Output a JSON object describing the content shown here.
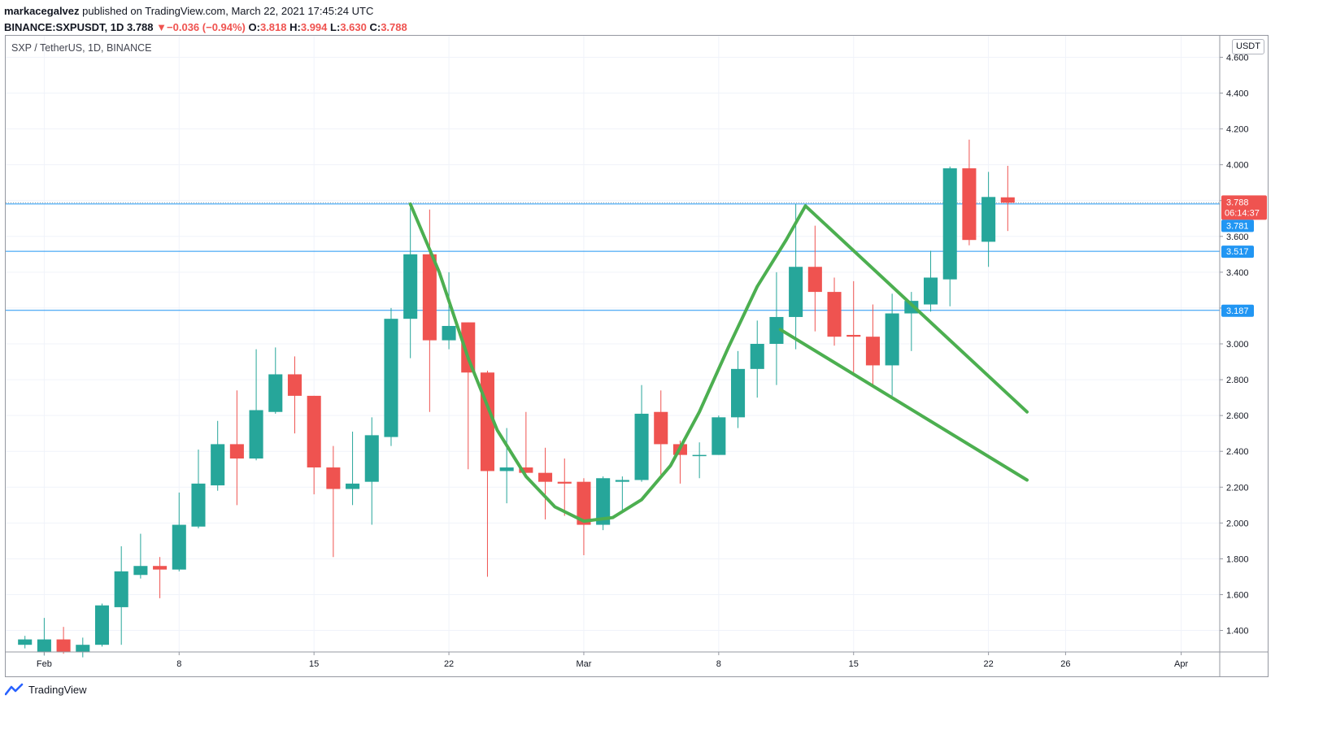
{
  "header": {
    "author": "markacegalvez",
    "published_text": "published on TradingView.com, March 22, 2021 17:45:24 UTC",
    "symbol": "BINANCE:SXPUSDT, 1D",
    "last": "3.788",
    "change_arrow": "▼",
    "change": "−0.036 (−0.94%)",
    "o_label": "O:",
    "o_value": "3.818",
    "h_label": "H:",
    "h_value": "3.994",
    "l_label": "L:",
    "l_value": "3.630",
    "c_label": "C:",
    "c_value": "3.788"
  },
  "symbol_label": "SXP / TetherUS, 1D, BINANCE",
  "currency": "USDT",
  "footer": {
    "brand": "TradingView",
    "logo_icon": "tradingview-logo-icon"
  },
  "price_badges": {
    "last_price": "3.788",
    "countdown": "06:14:37",
    "lines": [
      "3.781",
      "3.517",
      "3.187"
    ]
  },
  "colors": {
    "up": "#26a69a",
    "down": "#ef5350",
    "hline": "#2196f3",
    "drawing": "#4caf50",
    "grid": "#f0f3fa"
  },
  "chart_data": {
    "type": "candlestick",
    "y_range": [
      1.28,
      4.72
    ],
    "yticks": [
      1.4,
      1.6,
      1.8,
      2.0,
      2.2,
      2.4,
      2.6,
      2.8,
      3.0,
      3.2,
      3.4,
      3.6,
      3.8,
      4.0,
      4.2,
      4.4,
      4.6
    ],
    "ytick_labels": [
      "1.400",
      "1.600",
      "1.800",
      "2.000",
      "2.200",
      "2.400",
      "2.600",
      "2.800",
      "3.000",
      "3.200",
      "3.400",
      "3.600",
      "3.800",
      "4.000",
      "4.200",
      "4.400",
      "4.600"
    ],
    "x_range": [
      -2,
      61
    ],
    "xticks": [
      {
        "day": 0,
        "label": "Feb"
      },
      {
        "day": 7,
        "label": "8"
      },
      {
        "day": 14,
        "label": "15"
      },
      {
        "day": 21,
        "label": "22"
      },
      {
        "day": 28,
        "label": "Mar"
      },
      {
        "day": 35,
        "label": "8"
      },
      {
        "day": 42,
        "label": "15"
      },
      {
        "day": 49,
        "label": "22"
      },
      {
        "day": 53,
        "label": "26"
      },
      {
        "day": 59,
        "label": "Apr"
      }
    ],
    "candles": [
      {
        "d": -1,
        "o": 1.32,
        "h": 1.37,
        "l": 1.3,
        "c": 1.35
      },
      {
        "d": 0,
        "o": 1.28,
        "h": 1.47,
        "l": 1.26,
        "c": 1.35
      },
      {
        "d": 1,
        "o": 1.35,
        "h": 1.42,
        "l": 1.27,
        "c": 1.28
      },
      {
        "d": 2,
        "o": 1.28,
        "h": 1.36,
        "l": 1.25,
        "c": 1.32
      },
      {
        "d": 3,
        "o": 1.32,
        "h": 1.55,
        "l": 1.31,
        "c": 1.54
      },
      {
        "d": 4,
        "o": 1.53,
        "h": 1.87,
        "l": 1.32,
        "c": 1.73
      },
      {
        "d": 5,
        "o": 1.71,
        "h": 1.94,
        "l": 1.69,
        "c": 1.76
      },
      {
        "d": 6,
        "o": 1.76,
        "h": 1.81,
        "l": 1.58,
        "c": 1.74
      },
      {
        "d": 7,
        "o": 1.74,
        "h": 2.17,
        "l": 1.73,
        "c": 1.99
      },
      {
        "d": 8,
        "o": 1.98,
        "h": 2.41,
        "l": 1.97,
        "c": 2.22
      },
      {
        "d": 9,
        "o": 2.21,
        "h": 2.57,
        "l": 2.18,
        "c": 2.44
      },
      {
        "d": 10,
        "o": 2.44,
        "h": 2.74,
        "l": 2.1,
        "c": 2.36
      },
      {
        "d": 11,
        "o": 2.36,
        "h": 2.97,
        "l": 2.35,
        "c": 2.63
      },
      {
        "d": 12,
        "o": 2.62,
        "h": 2.98,
        "l": 2.61,
        "c": 2.83
      },
      {
        "d": 13,
        "o": 2.83,
        "h": 2.93,
        "l": 2.5,
        "c": 2.71
      },
      {
        "d": 14,
        "o": 2.71,
        "h": 2.71,
        "l": 2.16,
        "c": 2.31
      },
      {
        "d": 15,
        "o": 2.31,
        "h": 2.43,
        "l": 1.81,
        "c": 2.19
      },
      {
        "d": 16,
        "o": 2.19,
        "h": 2.51,
        "l": 2.1,
        "c": 2.22
      },
      {
        "d": 17,
        "o": 2.23,
        "h": 2.59,
        "l": 1.99,
        "c": 2.49
      },
      {
        "d": 18,
        "o": 2.48,
        "h": 3.2,
        "l": 2.43,
        "c": 3.14
      },
      {
        "d": 19,
        "o": 3.14,
        "h": 3.76,
        "l": 2.92,
        "c": 3.5
      },
      {
        "d": 20,
        "o": 3.5,
        "h": 3.75,
        "l": 2.62,
        "c": 3.02
      },
      {
        "d": 21,
        "o": 3.02,
        "h": 3.4,
        "l": 2.97,
        "c": 3.1
      },
      {
        "d": 22,
        "o": 3.12,
        "h": 3.12,
        "l": 2.3,
        "c": 2.84
      },
      {
        "d": 23,
        "o": 2.84,
        "h": 2.85,
        "l": 1.7,
        "c": 2.29
      },
      {
        "d": 24,
        "o": 2.29,
        "h": 2.53,
        "l": 2.11,
        "c": 2.31
      },
      {
        "d": 25,
        "o": 2.31,
        "h": 2.62,
        "l": 2.28,
        "c": 2.28
      },
      {
        "d": 26,
        "o": 2.28,
        "h": 2.42,
        "l": 2.02,
        "c": 2.23
      },
      {
        "d": 27,
        "o": 2.23,
        "h": 2.36,
        "l": 2.04,
        "c": 2.22
      },
      {
        "d": 28,
        "o": 2.23,
        "h": 2.25,
        "l": 1.82,
        "c": 1.99
      },
      {
        "d": 29,
        "o": 1.99,
        "h": 2.26,
        "l": 1.96,
        "c": 2.25
      },
      {
        "d": 30,
        "o": 2.23,
        "h": 2.26,
        "l": 2.07,
        "c": 2.24
      },
      {
        "d": 31,
        "o": 2.24,
        "h": 2.77,
        "l": 2.23,
        "c": 2.61
      },
      {
        "d": 32,
        "o": 2.62,
        "h": 2.74,
        "l": 2.27,
        "c": 2.44
      },
      {
        "d": 33,
        "o": 2.44,
        "h": 2.46,
        "l": 2.22,
        "c": 2.38
      },
      {
        "d": 34,
        "o": 2.38,
        "h": 2.45,
        "l": 2.25,
        "c": 2.38
      },
      {
        "d": 35,
        "o": 2.38,
        "h": 2.6,
        "l": 2.38,
        "c": 2.59
      },
      {
        "d": 36,
        "o": 2.59,
        "h": 2.96,
        "l": 2.53,
        "c": 2.86
      },
      {
        "d": 37,
        "o": 2.86,
        "h": 3.13,
        "l": 2.7,
        "c": 3.0
      },
      {
        "d": 38,
        "o": 3.0,
        "h": 3.4,
        "l": 2.77,
        "c": 3.15
      },
      {
        "d": 39,
        "o": 3.15,
        "h": 3.78,
        "l": 2.97,
        "c": 3.43
      },
      {
        "d": 40,
        "o": 3.43,
        "h": 3.66,
        "l": 3.07,
        "c": 3.29
      },
      {
        "d": 41,
        "o": 3.29,
        "h": 3.37,
        "l": 2.99,
        "c": 3.04
      },
      {
        "d": 42,
        "o": 3.05,
        "h": 3.35,
        "l": 2.84,
        "c": 3.04
      },
      {
        "d": 43,
        "o": 3.04,
        "h": 3.22,
        "l": 2.76,
        "c": 2.88
      },
      {
        "d": 44,
        "o": 2.88,
        "h": 3.28,
        "l": 2.71,
        "c": 3.17
      },
      {
        "d": 45,
        "o": 3.17,
        "h": 3.29,
        "l": 2.96,
        "c": 3.24
      },
      {
        "d": 46,
        "o": 3.22,
        "h": 3.52,
        "l": 3.18,
        "c": 3.37
      },
      {
        "d": 47,
        "o": 3.36,
        "h": 3.99,
        "l": 3.21,
        "c": 3.98
      },
      {
        "d": 48,
        "o": 3.98,
        "h": 4.14,
        "l": 3.55,
        "c": 3.58
      },
      {
        "d": 49,
        "o": 3.57,
        "h": 3.96,
        "l": 3.43,
        "c": 3.82
      },
      {
        "d": 50,
        "o": 3.818,
        "h": 3.994,
        "l": 3.63,
        "c": 3.788
      }
    ],
    "horizontal_lines": [
      3.781,
      3.517,
      3.187
    ],
    "last_price": 3.788,
    "drawings": {
      "cup": [
        [
          19,
          3.78
        ],
        [
          20.5,
          3.4
        ],
        [
          22,
          2.92
        ],
        [
          23.5,
          2.52
        ],
        [
          25,
          2.26
        ],
        [
          26.5,
          2.09
        ],
        [
          28,
          2.01
        ],
        [
          29.5,
          2.03
        ],
        [
          31,
          2.13
        ],
        [
          32.5,
          2.32
        ],
        [
          34,
          2.62
        ],
        [
          35.5,
          2.98
        ],
        [
          37,
          3.32
        ],
        [
          38.5,
          3.58
        ],
        [
          39.5,
          3.77
        ]
      ],
      "flag_top": [
        [
          39.5,
          3.77
        ],
        [
          51,
          2.62
        ]
      ],
      "flag_bottom": [
        [
          38.2,
          3.08
        ],
        [
          51,
          2.24
        ]
      ]
    }
  }
}
